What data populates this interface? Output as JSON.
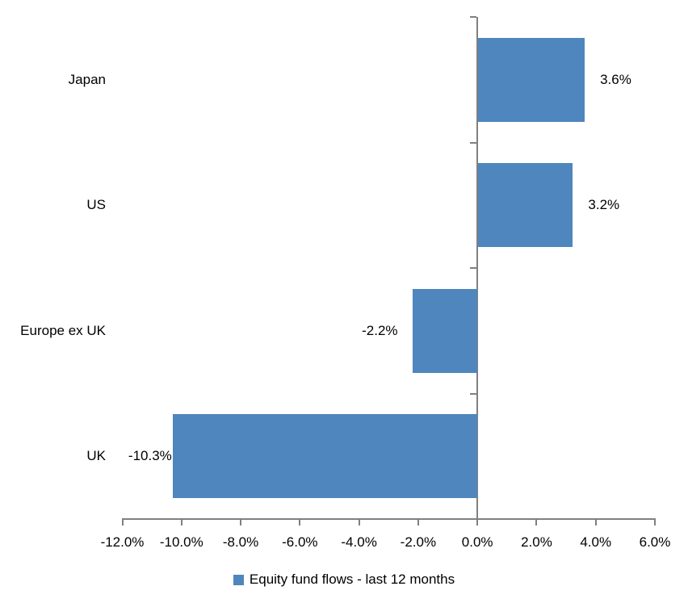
{
  "chart_data": {
    "type": "bar",
    "orientation": "horizontal",
    "title": "",
    "categories": [
      "Japan",
      "US",
      "Europe ex UK",
      "UK"
    ],
    "series": [
      {
        "name": "Equity fund flows - last 12 months",
        "values": [
          3.6,
          3.2,
          -2.2,
          -10.3
        ],
        "value_labels": [
          "3.6%",
          "3.2%",
          "-2.2%",
          "-10.3%"
        ]
      }
    ],
    "x_axis": {
      "min": -12,
      "max": 6,
      "step": 2,
      "tick_values": [
        -12,
        -10,
        -8,
        -6,
        -4,
        -2,
        0,
        2,
        4,
        6
      ],
      "tick_labels": [
        "-12.0%",
        "-10.0%",
        "-8.0%",
        "-6.0%",
        "-4.0%",
        "-2.0%",
        "0.0%",
        "2.0%",
        "4.0%",
        "6.0%"
      ],
      "zero_line": true
    },
    "grid": false,
    "legend": {
      "position": "bottom",
      "label": "Equity fund flows - last 12 months"
    },
    "colors": {
      "bar": "#4E86BD",
      "axis": "#808080",
      "text": "#000000",
      "background": "#FFFFFF"
    }
  }
}
